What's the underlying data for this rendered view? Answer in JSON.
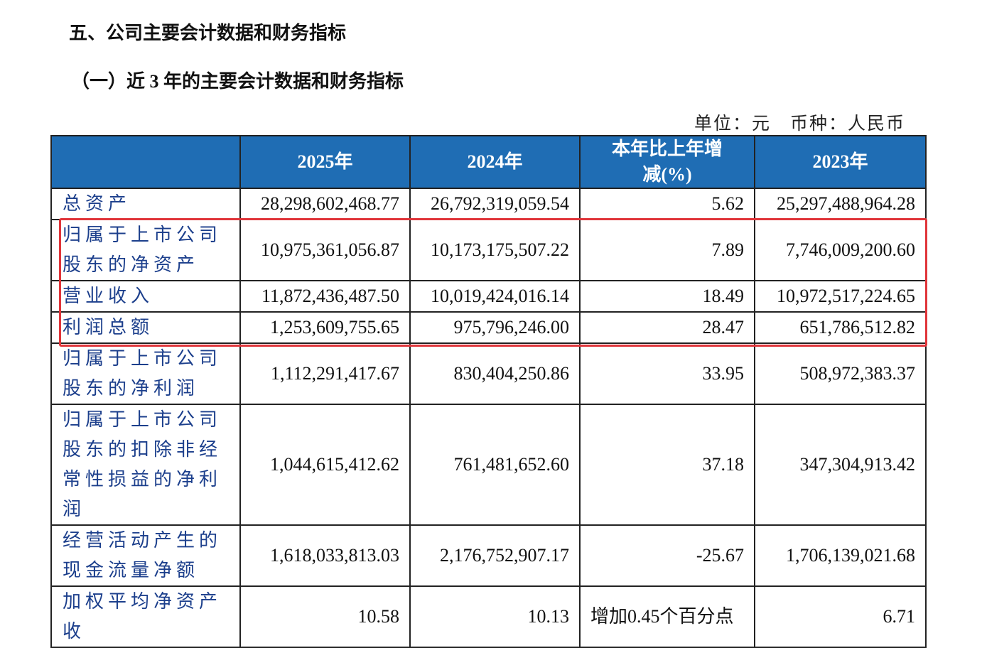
{
  "title": "五、公司主要会计数据和财务指标",
  "subtitle": "（一）近 3 年的主要会计数据和财务指标",
  "unit": "单位：元　币种：人民币",
  "table": {
    "header": [
      "",
      "2025年",
      "2024年",
      "本年比上年增减(%)",
      "2023年"
    ],
    "rows": [
      [
        "总资产",
        "28,298,602,468.77",
        "26,792,319,059.54",
        "5.62",
        "25,297,488,964.28"
      ],
      [
        "归属于上市公司股东的净资产",
        "10,975,361,056.87",
        "10,173,175,507.22",
        "7.89",
        "7,746,009,200.60"
      ],
      [
        "营业收入",
        "11,872,436,487.50",
        "10,019,424,016.14",
        "18.49",
        "10,972,517,224.65"
      ],
      [
        "利润总额",
        "1,253,609,755.65",
        "975,796,246.00",
        "28.47",
        "651,786,512.82"
      ],
      [
        "归属于上市公司股东的净利润",
        "1,112,291,417.67",
        "830,404,250.86",
        "33.95",
        "508,972,383.37"
      ],
      [
        "归属于上市公司股东的扣除非经常性损益的净利润",
        "1,044,615,412.62",
        "761,481,652.60",
        "37.18",
        "347,304,913.42"
      ],
      [
        "经营活动产生的现金流量净额",
        "1,618,033,813.03",
        "2,176,752,907.17",
        "-25.67",
        "1,706,139,021.68"
      ],
      [
        "加权平均净资产收",
        "10.58",
        "10.13",
        "增加0.45个百分点",
        "6.71"
      ]
    ]
  }
}
